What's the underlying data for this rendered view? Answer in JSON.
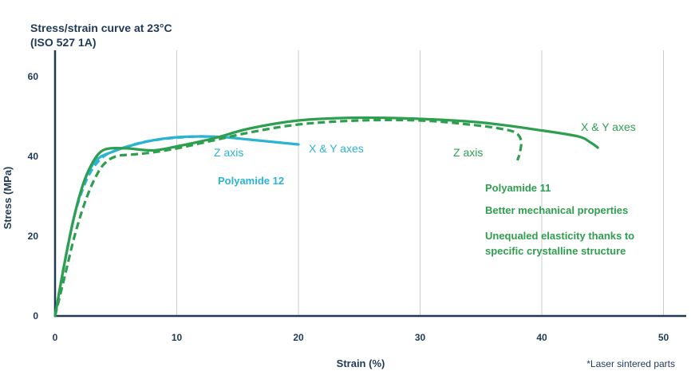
{
  "chart_data": {
    "type": "line",
    "title_line1": "Stress/strain curve at 23°C",
    "title_line2": "(ISO 527 1A)",
    "xlabel": "Strain (%)",
    "ylabel": "Stress (MPa)",
    "xlim": [
      0,
      52
    ],
    "ylim": [
      0,
      68
    ],
    "xticks": [
      0,
      10,
      20,
      30,
      40,
      50
    ],
    "yticks": [
      0,
      20,
      40,
      60
    ],
    "grid": "vertical",
    "colors": {
      "pa12": "#2bb3d4",
      "pa11": "#2e9e4f",
      "axis": "#1f3a57",
      "grid": "#cccccc"
    },
    "series": [
      {
        "id": "pa12-xy",
        "style": "solid",
        "color": "#2bb3d4",
        "x": [
          0,
          0.7,
          1.5,
          2.3,
          3.1,
          3.8,
          4.6,
          6,
          8,
          10,
          12,
          14,
          16,
          18,
          20
        ],
        "y": [
          0,
          12,
          24,
          33,
          38,
          40,
          41,
          42.5,
          44,
          44.8,
          45,
          44.8,
          44.2,
          43.6,
          43
        ]
      },
      {
        "id": "pa12-z",
        "style": "dashed",
        "color": "#2bb3d4",
        "x": [
          0,
          0.7,
          1.5,
          2.3,
          3.1,
          4,
          5,
          6.5,
          8,
          10,
          12,
          13
        ],
        "y": [
          0,
          12,
          24,
          32,
          37,
          40,
          41.5,
          43,
          44,
          44.7,
          45,
          44.8
        ]
      },
      {
        "id": "pa11-xy",
        "style": "solid",
        "color": "#2e9e4f",
        "x": [
          0,
          0.7,
          1.5,
          2.3,
          3,
          3.7,
          4.5,
          6,
          8,
          10,
          13,
          16,
          20,
          25,
          30,
          35,
          40,
          43,
          44,
          44.6
        ],
        "y": [
          0,
          12,
          24,
          33,
          38,
          41,
          42,
          42,
          41.5,
          42.5,
          44.5,
          47,
          49,
          49.7,
          49.4,
          48.5,
          46.5,
          45,
          43.5,
          42.2
        ]
      },
      {
        "id": "pa11-z",
        "style": "dashed",
        "color": "#2e9e4f",
        "x": [
          0,
          0.8,
          1.6,
          2.4,
          3.2,
          4,
          5,
          6.5,
          8,
          10,
          13,
          16,
          20,
          25,
          30,
          34,
          36.5,
          37.8,
          38.3,
          38.2,
          38
        ],
        "y": [
          0,
          10,
          20,
          28,
          34,
          38,
          40,
          40.5,
          41,
          42,
          44,
          46,
          48,
          49,
          49,
          48,
          47,
          46,
          44,
          41,
          39
        ]
      }
    ],
    "annotations": {
      "pa12_z": "Z axis",
      "pa12_xy": "X & Y axes",
      "pa12_name": "Polyamide 12",
      "pa11_xy": "X & Y axes",
      "pa11_z": "Z axis",
      "pa11_name": "Polyamide 11",
      "pa11_note1": "Better mechanical properties",
      "pa11_note2_line1": "Unequaled elasticity thanks to",
      "pa11_note2_line2": "specific crystalline structure"
    },
    "footnote": "*Laser sintered parts"
  }
}
